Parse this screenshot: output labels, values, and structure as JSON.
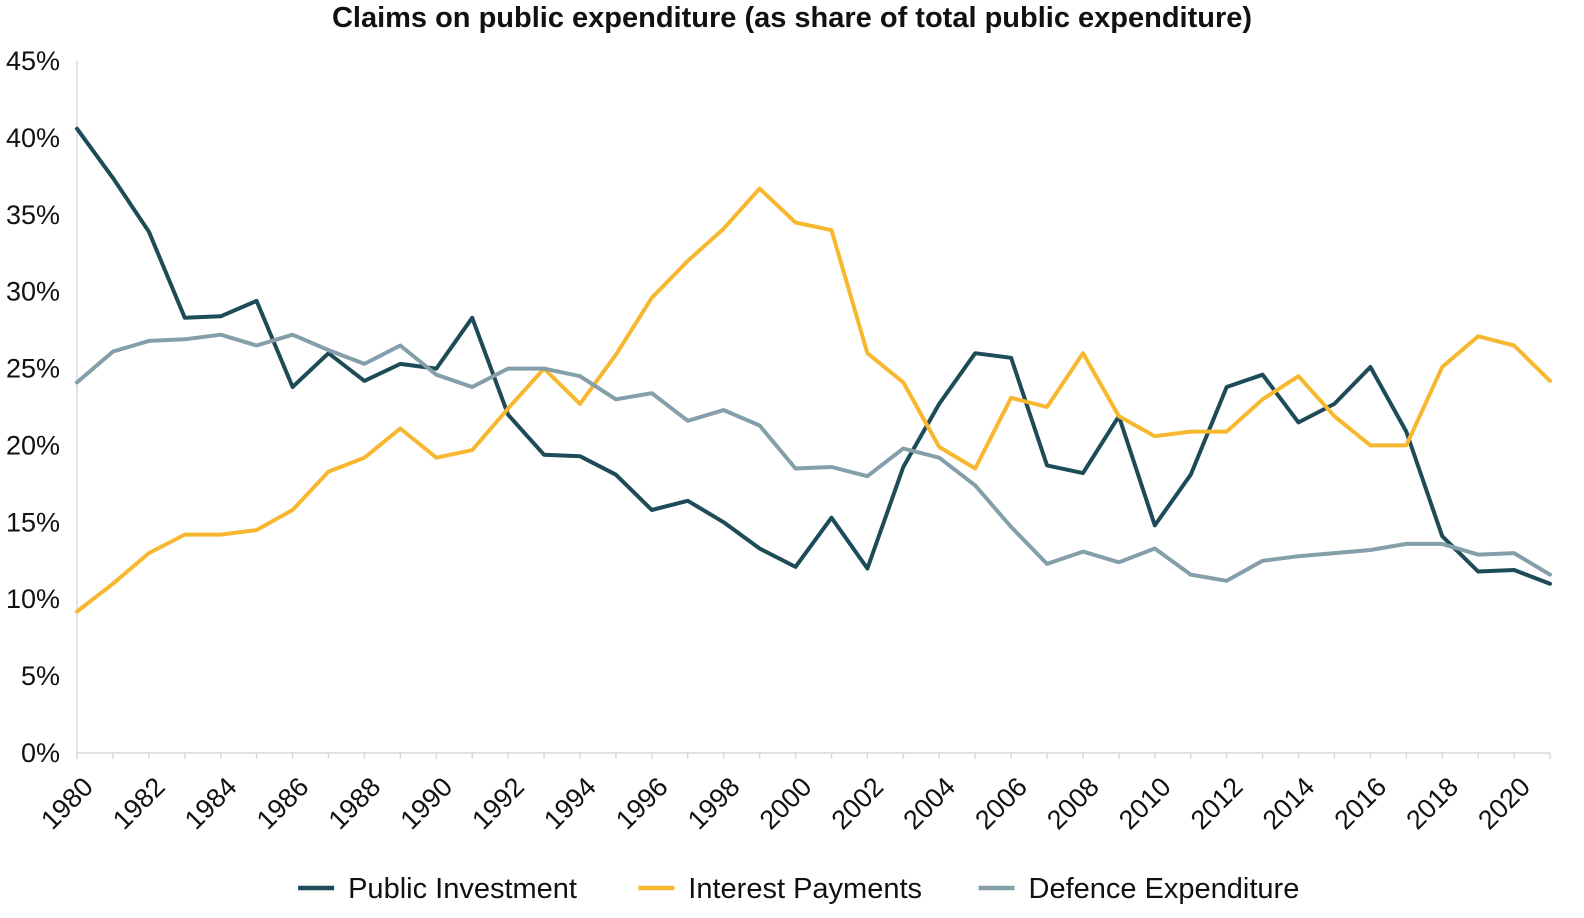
{
  "chart_data": {
    "type": "line",
    "title": "Claims on public expenditure (as share of total public expenditure)",
    "xlabel": "",
    "ylabel": "",
    "ylim": [
      0,
      45
    ],
    "xlim": [
      1980,
      2021
    ],
    "y_ticks": [
      "0%",
      "5%",
      "10%",
      "15%",
      "20%",
      "25%",
      "30%",
      "35%",
      "40%",
      "45%"
    ],
    "x_tick_labels": [
      "1980",
      "1982",
      "1984",
      "1986",
      "1988",
      "1990",
      "1992",
      "1994",
      "1996",
      "1998",
      "2000",
      "2002",
      "2004",
      "2006",
      "2008",
      "2010",
      "2012",
      "2014",
      "2016",
      "2018",
      "2020"
    ],
    "grid": false,
    "legend_position": "bottom",
    "x": [
      1980,
      1981,
      1982,
      1983,
      1984,
      1985,
      1986,
      1987,
      1988,
      1989,
      1990,
      1991,
      1992,
      1993,
      1994,
      1995,
      1996,
      1997,
      1998,
      1999,
      2000,
      2001,
      2002,
      2003,
      2004,
      2005,
      2006,
      2007,
      2008,
      2009,
      2010,
      2011,
      2012,
      2013,
      2014,
      2015,
      2016,
      2017,
      2018,
      2019,
      2020,
      2021
    ],
    "series": [
      {
        "name": "Public Investment",
        "color": "#1d4b57",
        "values": [
          40.6,
          37.4,
          33.9,
          28.3,
          28.4,
          29.4,
          23.8,
          26.0,
          24.2,
          25.3,
          25.0,
          28.3,
          22.0,
          19.4,
          19.3,
          18.1,
          15.8,
          16.4,
          15.0,
          13.3,
          12.1,
          15.3,
          12.0,
          18.6,
          22.7,
          26.0,
          25.7,
          18.7,
          18.2,
          21.9,
          14.8,
          18.1,
          23.8,
          24.6,
          21.5,
          22.7,
          25.1,
          20.9,
          14.1,
          11.8,
          11.9,
          11.0
        ]
      },
      {
        "name": "Interest Payments",
        "color": "#f7b72e",
        "values": [
          9.2,
          11.0,
          13.0,
          14.2,
          14.2,
          14.5,
          15.8,
          18.3,
          19.2,
          21.1,
          19.2,
          19.7,
          22.4,
          25.0,
          22.7,
          25.9,
          29.6,
          32.0,
          34.1,
          36.7,
          34.5,
          34.0,
          26.0,
          24.1,
          19.9,
          18.5,
          23.1,
          22.5,
          26.0,
          21.9,
          20.6,
          20.9,
          20.9,
          23.0,
          24.5,
          21.9,
          20.0,
          20.0,
          25.1,
          27.1,
          26.5,
          24.2
        ]
      },
      {
        "name": "Defence Expenditure",
        "color": "#849fa9",
        "values": [
          24.1,
          26.1,
          26.8,
          26.9,
          27.2,
          26.5,
          27.2,
          26.2,
          25.3,
          26.5,
          24.6,
          23.8,
          25.0,
          25.0,
          24.5,
          23.0,
          23.4,
          21.6,
          22.3,
          21.3,
          18.5,
          18.6,
          18.0,
          19.8,
          19.2,
          17.4,
          14.7,
          12.3,
          13.1,
          12.4,
          13.3,
          11.6,
          11.2,
          12.5,
          12.8,
          13.0,
          13.2,
          13.6,
          13.6,
          12.9,
          13.0,
          11.6
        ]
      }
    ]
  }
}
